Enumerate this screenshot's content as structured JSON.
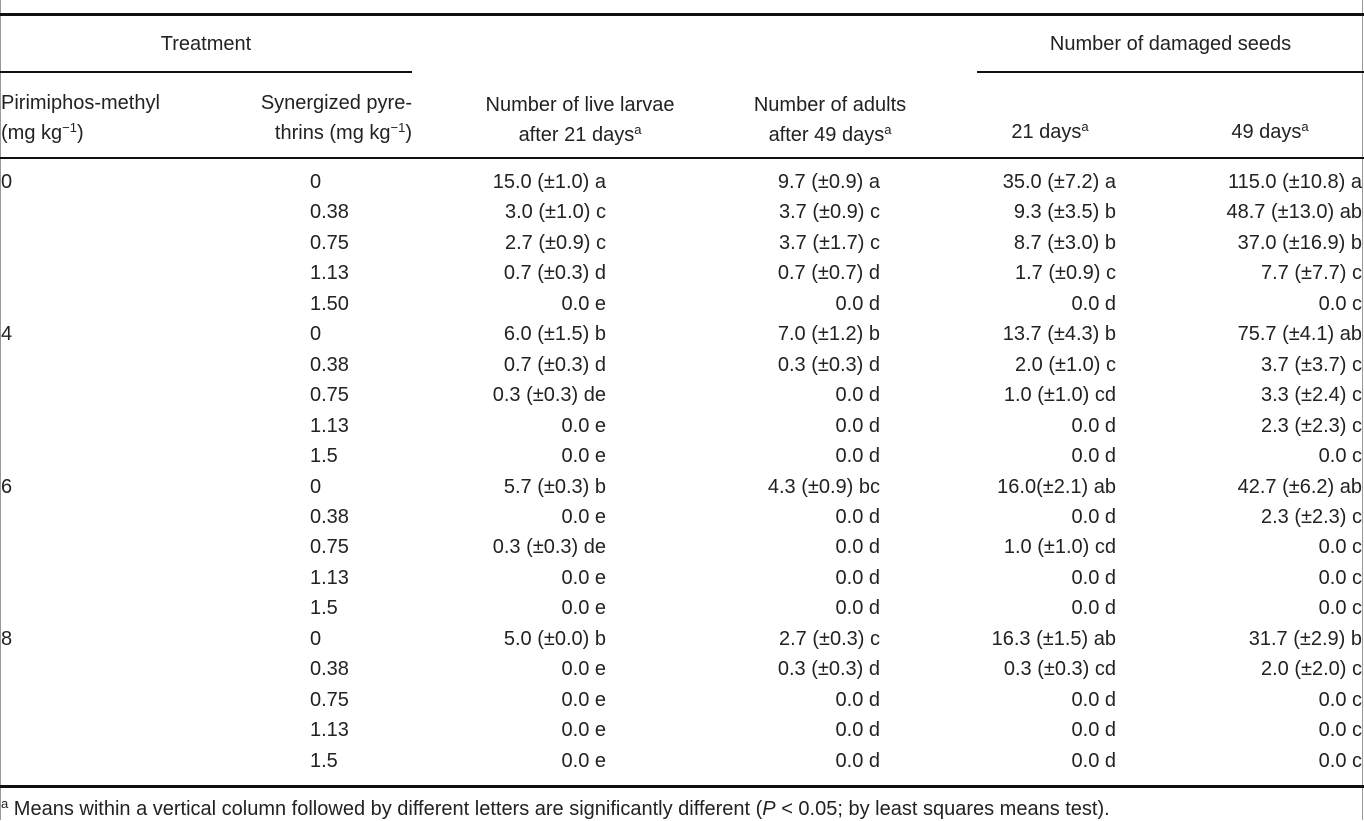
{
  "table": {
    "headers": {
      "treatment": "Treatment",
      "damaged": "Number of damaged seeds",
      "pm": [
        "Pirimiphos-methyl",
        "(mg kg",
        "−1",
        ")"
      ],
      "sp": [
        "Synergized pyre-",
        "thrins (mg kg",
        "−1",
        ")"
      ],
      "larvae": [
        "Number of live larvae",
        "after 21 days",
        "a"
      ],
      "adults": [
        "Number of adults",
        "after 49 days",
        "a"
      ],
      "d21": [
        "21 days",
        "a"
      ],
      "d49": [
        "49 days",
        "a"
      ]
    },
    "rows": [
      [
        "0",
        "0",
        "15.0 (±1.0) a",
        "9.7 (±0.9) a",
        "35.0 (±7.2) a",
        "115.0 (±10.8) a"
      ],
      [
        null,
        "0.38",
        "3.0 (±1.0) c",
        "3.7 (±0.9) c",
        "9.3 (±3.5) b",
        "48.7 (±13.0) ab"
      ],
      [
        null,
        "0.75",
        "2.7 (±0.9) c",
        "3.7 (±1.7) c",
        "8.7 (±3.0) b",
        "37.0 (±16.9) b"
      ],
      [
        null,
        "1.13",
        "0.7 (±0.3) d",
        "0.7 (±0.7) d",
        "1.7 (±0.9) c",
        "7.7 (±7.7) c"
      ],
      [
        null,
        "1.50",
        "0.0 e",
        "0.0 d",
        "0.0 d",
        "0.0 c"
      ],
      [
        "4",
        "0",
        "6.0 (±1.5) b",
        "7.0 (±1.2) b",
        "13.7 (±4.3) b",
        "75.7 (±4.1) ab"
      ],
      [
        null,
        "0.38",
        "0.7 (±0.3) d",
        "0.3 (±0.3) d",
        "2.0 (±1.0) c",
        "3.7 (±3.7) c"
      ],
      [
        null,
        "0.75",
        "0.3 (±0.3) de",
        "0.0 d",
        "1.0 (±1.0) cd",
        "3.3 (±2.4) c"
      ],
      [
        null,
        "1.13",
        "0.0 e",
        "0.0 d",
        "0.0 d",
        "2.3 (±2.3) c"
      ],
      [
        null,
        "1.5",
        "0.0 e",
        "0.0 d",
        "0.0 d",
        "0.0 c"
      ],
      [
        "6",
        "0",
        "5.7 (±0.3) b",
        "4.3 (±0.9) bc",
        "16.0(±2.1) ab",
        "42.7 (±6.2) ab"
      ],
      [
        null,
        "0.38",
        "0.0 e",
        "0.0 d",
        "0.0 d",
        "2.3 (±2.3) c"
      ],
      [
        null,
        "0.75",
        "0.3 (±0.3) de",
        "0.0 d",
        "1.0 (±1.0) cd",
        "0.0 c"
      ],
      [
        null,
        "1.13",
        "0.0 e",
        "0.0 d",
        "0.0 d",
        "0.0 c"
      ],
      [
        null,
        "1.5",
        "0.0 e",
        "0.0 d",
        "0.0 d",
        "0.0 c"
      ],
      [
        "8",
        "0",
        "5.0 (±0.0) b",
        "2.7 (±0.3) c",
        "16.3 (±1.5) ab",
        "31.7 (±2.9) b"
      ],
      [
        null,
        "0.38",
        "0.0 e",
        "0.3 (±0.3) d",
        "0.3 (±0.3) cd",
        "2.0 (±2.0) c"
      ],
      [
        null,
        "0.75",
        "0.0 e",
        "0.0 d",
        "0.0 d",
        "0.0 c"
      ],
      [
        null,
        "1.13",
        "0.0 e",
        "0.0 d",
        "0.0 d",
        "0.0 c"
      ],
      [
        null,
        "1.5",
        "0.0 e",
        "0.0 d",
        "0.0 d",
        "0.0 c"
      ]
    ],
    "footnote": [
      "a",
      " Means within a vertical column followed by different letters are significantly different (",
      "P",
      " < 0.05; by least squares means test)."
    ]
  }
}
